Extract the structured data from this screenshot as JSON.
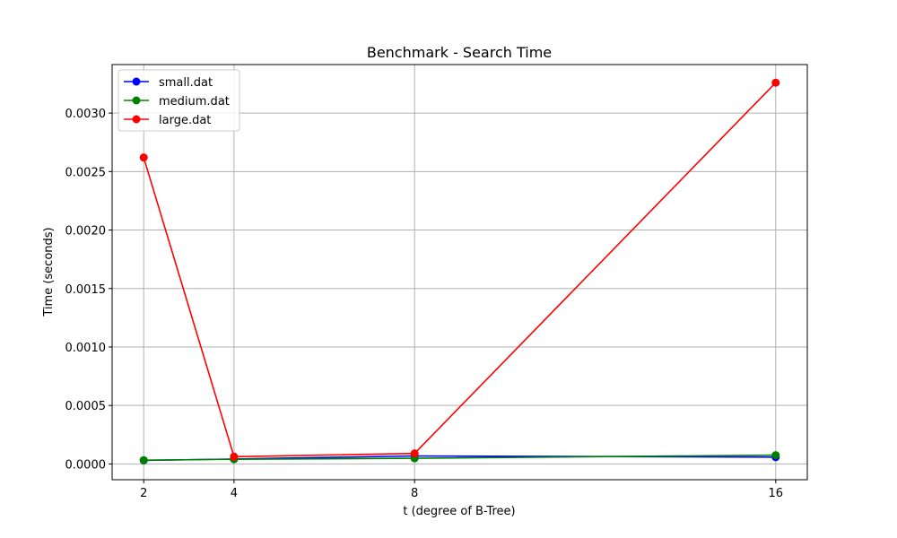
{
  "chart_data": {
    "type": "line",
    "title": "Benchmark - Search Time",
    "xlabel": "t (degree of B-Tree)",
    "ylabel": "Time (seconds)",
    "x": [
      2,
      4,
      8,
      16
    ],
    "x_ticks": [
      "2",
      "4",
      "8",
      "16"
    ],
    "xlim": [
      1.3,
      16.7
    ],
    "ylim": [
      -0.000135,
      0.003415
    ],
    "y_ticks": [
      0.0,
      0.0005,
      0.001,
      0.0015,
      0.002,
      0.0025,
      0.003
    ],
    "y_tick_labels": [
      "0.0000",
      "0.0005",
      "0.0010",
      "0.0015",
      "0.0020",
      "0.0025",
      "0.0030"
    ],
    "grid": true,
    "legend_position": "top-left",
    "series": [
      {
        "name": "small.dat",
        "color": "#0000ff",
        "values": [
          3e-05,
          4.2e-05,
          6.8e-05,
          5.8e-05
        ]
      },
      {
        "name": "medium.dat",
        "color": "#008000",
        "values": [
          3.2e-05,
          4e-05,
          4.8e-05,
          7.5e-05
        ]
      },
      {
        "name": "large.dat",
        "color": "#ff0000",
        "values": [
          0.00262,
          6.2e-05,
          9e-05,
          0.00326
        ]
      }
    ]
  }
}
